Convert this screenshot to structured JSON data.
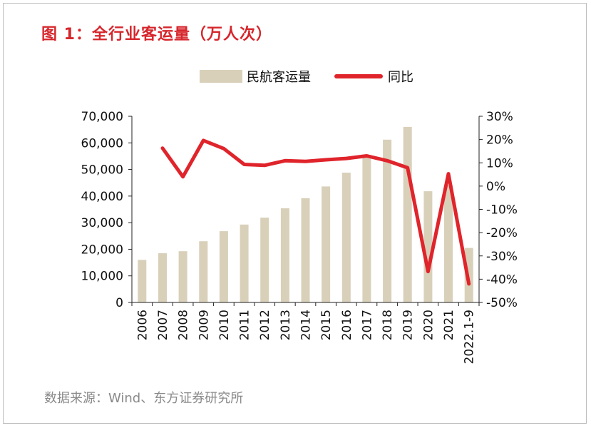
{
  "title": "图 1：全行业客运量（万人次）",
  "source": "数据来源：Wind、东方证券研究所",
  "chart_data": {
    "type": "bar",
    "categories": [
      "2006",
      "2007",
      "2008",
      "2009",
      "2010",
      "2011",
      "2012",
      "2013",
      "2014",
      "2015",
      "2016",
      "2017",
      "2018",
      "2019",
      "2020",
      "2021",
      "2022.1-9"
    ],
    "series": [
      {
        "name": "民航客运量",
        "type": "bar",
        "axis": "left",
        "color": "#d9d0ba",
        "values": [
          16000,
          18500,
          19250,
          23000,
          26800,
          29300,
          31900,
          35400,
          39200,
          43600,
          48800,
          55200,
          61200,
          66000,
          41800,
          44000,
          20500
        ]
      },
      {
        "name": "同比",
        "type": "line",
        "axis": "right",
        "color": "#e0242b",
        "values": [
          null,
          16.3,
          4.0,
          19.6,
          16.1,
          9.3,
          8.9,
          10.9,
          10.6,
          11.3,
          11.9,
          13.0,
          10.9,
          7.9,
          -36.7,
          5.3,
          -42.0
        ]
      }
    ],
    "y_left": {
      "lim": [
        0,
        70000
      ],
      "ticks": [
        0,
        10000,
        20000,
        30000,
        40000,
        50000,
        60000,
        70000
      ],
      "tick_labels": [
        "0",
        "10,000",
        "20,000",
        "30,000",
        "40,000",
        "50,000",
        "60,000",
        "70,000"
      ]
    },
    "y_right": {
      "lim": [
        -50,
        30
      ],
      "ticks": [
        -50,
        -40,
        -30,
        -20,
        -10,
        0,
        10,
        20,
        30
      ],
      "tick_labels": [
        "-50%",
        "-40%",
        "-30%",
        "-20%",
        "-10%",
        "0%",
        "10%",
        "20%",
        "30%"
      ]
    },
    "legend_position": "top-center",
    "grid": false
  }
}
